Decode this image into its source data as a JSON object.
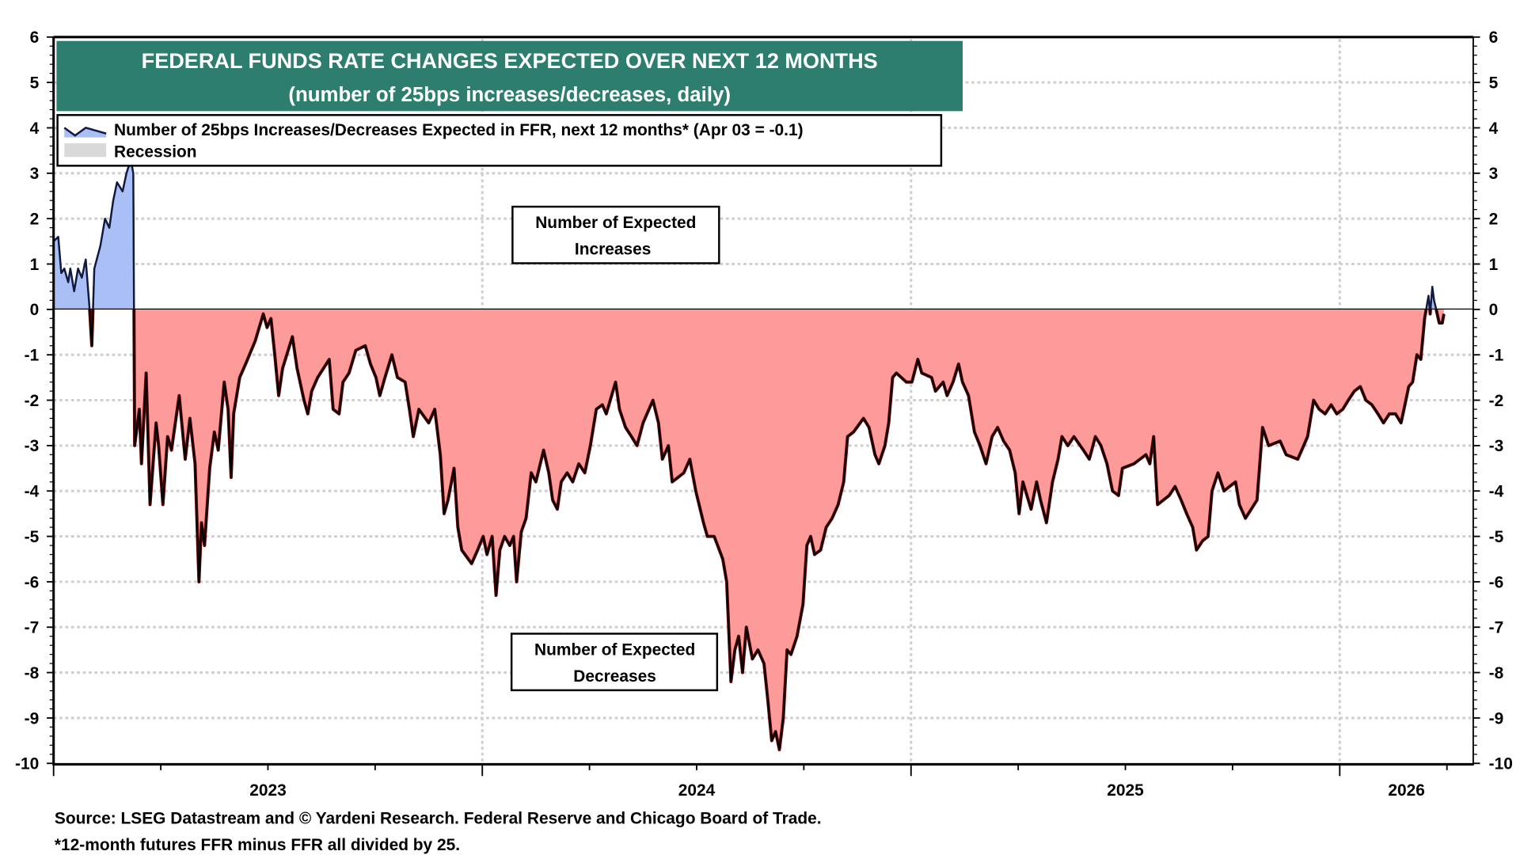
{
  "chart_data": {
    "type": "area",
    "title": "FEDERAL FUNDS RATE CHANGES EXPECTED OVER NEXT 12 MONTHS",
    "subtitle": "(number of 25bps increases/decreases, daily)",
    "legend": [
      {
        "label": "Number of 25bps Increases/Decreases Expected in FFR, next 12 months* (Apr 03 = -0.1)",
        "color_positive": "#a9bff5",
        "color_negative": "#fd9a9a",
        "line_color": "#101a40"
      },
      {
        "label": "Recession",
        "color": "#d9d9d9"
      }
    ],
    "legend_placement": "top-left",
    "annotations": {
      "increases": [
        "Number of Expected",
        "Increases"
      ],
      "decreases": [
        "Number of Expected",
        "Decreases"
      ]
    },
    "ylim": [
      -10,
      6
    ],
    "yticks": [
      6,
      5,
      4,
      3,
      2,
      1,
      0,
      -1,
      -2,
      -3,
      -4,
      -5,
      -6,
      -7,
      -8,
      -9,
      -10
    ],
    "xlim": [
      2023.0,
      2026.33
    ],
    "xtick_labels": [
      "2023",
      "2024",
      "2025",
      "2026"
    ],
    "grid": true,
    "x_unit": "year",
    "series": [
      {
        "points": [
          [
            2023.0,
            1.5
          ],
          [
            2023.011,
            1.6
          ],
          [
            2023.018,
            0.8
          ],
          [
            2023.025,
            0.9
          ],
          [
            2023.034,
            0.6
          ],
          [
            2023.039,
            0.9
          ],
          [
            2023.048,
            0.4
          ],
          [
            2023.057,
            0.9
          ],
          [
            2023.066,
            0.7
          ],
          [
            2023.075,
            1.1
          ],
          [
            2023.084,
            0.0
          ],
          [
            2023.089,
            -0.8
          ],
          [
            2023.095,
            0.9
          ],
          [
            2023.109,
            1.4
          ],
          [
            2023.12,
            2.0
          ],
          [
            2023.13,
            1.8
          ],
          [
            2023.139,
            2.4
          ],
          [
            2023.148,
            2.8
          ],
          [
            2023.161,
            2.6
          ],
          [
            2023.17,
            3.0
          ],
          [
            2023.18,
            3.3
          ],
          [
            2023.186,
            3.0
          ],
          [
            2023.189,
            -3.0
          ],
          [
            2023.2,
            -2.2
          ],
          [
            2023.205,
            -3.4
          ],
          [
            2023.216,
            -1.4
          ],
          [
            2023.225,
            -4.3
          ],
          [
            2023.239,
            -2.5
          ],
          [
            2023.245,
            -3.0
          ],
          [
            2023.255,
            -4.3
          ],
          [
            2023.266,
            -2.8
          ],
          [
            2023.275,
            -3.1
          ],
          [
            2023.293,
            -1.9
          ],
          [
            2023.307,
            -3.3
          ],
          [
            2023.318,
            -2.4
          ],
          [
            2023.33,
            -3.4
          ],
          [
            2023.339,
            -6.0
          ],
          [
            2023.345,
            -4.7
          ],
          [
            2023.352,
            -5.2
          ],
          [
            2023.364,
            -3.5
          ],
          [
            2023.375,
            -2.7
          ],
          [
            2023.384,
            -3.1
          ],
          [
            2023.398,
            -1.6
          ],
          [
            2023.407,
            -2.2
          ],
          [
            2023.414,
            -3.7
          ],
          [
            2023.42,
            -2.3
          ],
          [
            2023.434,
            -1.5
          ],
          [
            2023.448,
            -1.2
          ],
          [
            2023.47,
            -0.7
          ],
          [
            2023.489,
            -0.1
          ],
          [
            2023.498,
            -0.4
          ],
          [
            2023.507,
            -0.2
          ],
          [
            2023.516,
            -1.0
          ],
          [
            2023.525,
            -1.9
          ],
          [
            2023.534,
            -1.3
          ],
          [
            2023.557,
            -0.6
          ],
          [
            2023.568,
            -1.3
          ],
          [
            2023.584,
            -2.0
          ],
          [
            2023.593,
            -2.3
          ],
          [
            2023.602,
            -1.8
          ],
          [
            2023.616,
            -1.5
          ],
          [
            2023.643,
            -1.1
          ],
          [
            2023.652,
            -2.2
          ],
          [
            2023.666,
            -2.3
          ],
          [
            2023.675,
            -1.6
          ],
          [
            2023.689,
            -1.4
          ],
          [
            2023.705,
            -0.9
          ],
          [
            2023.727,
            -0.8
          ],
          [
            2023.739,
            -1.2
          ],
          [
            2023.752,
            -1.5
          ],
          [
            2023.761,
            -1.9
          ],
          [
            2023.773,
            -1.5
          ],
          [
            2023.789,
            -1.0
          ],
          [
            2023.802,
            -1.5
          ],
          [
            2023.82,
            -1.6
          ],
          [
            2023.83,
            -2.2
          ],
          [
            2023.839,
            -2.8
          ],
          [
            2023.852,
            -2.2
          ],
          [
            2023.875,
            -2.5
          ],
          [
            2023.889,
            -2.2
          ],
          [
            2023.902,
            -3.2
          ],
          [
            2023.911,
            -4.5
          ],
          [
            2023.92,
            -4.2
          ],
          [
            2023.934,
            -3.5
          ],
          [
            2023.943,
            -4.8
          ],
          [
            2023.952,
            -5.3
          ],
          [
            2023.975,
            -5.6
          ],
          [
            2023.989,
            -5.3
          ],
          [
            2024.002,
            -5.0
          ],
          [
            2024.011,
            -5.4
          ],
          [
            2024.023,
            -5.0
          ],
          [
            2024.032,
            -6.3
          ],
          [
            2024.041,
            -5.3
          ],
          [
            2024.052,
            -5.0
          ],
          [
            2024.064,
            -5.2
          ],
          [
            2024.073,
            -5.0
          ],
          [
            2024.08,
            -6.0
          ],
          [
            2024.091,
            -4.9
          ],
          [
            2024.102,
            -4.6
          ],
          [
            2024.114,
            -3.6
          ],
          [
            2024.125,
            -3.8
          ],
          [
            2024.143,
            -3.1
          ],
          [
            2024.155,
            -3.6
          ],
          [
            2024.164,
            -4.2
          ],
          [
            2024.175,
            -4.4
          ],
          [
            2024.184,
            -3.8
          ],
          [
            2024.198,
            -3.6
          ],
          [
            2024.211,
            -3.8
          ],
          [
            2024.225,
            -3.4
          ],
          [
            2024.239,
            -3.6
          ],
          [
            2024.252,
            -3.0
          ],
          [
            2024.266,
            -2.2
          ],
          [
            2024.28,
            -2.1
          ],
          [
            2024.289,
            -2.3
          ],
          [
            2024.311,
            -1.6
          ],
          [
            2024.32,
            -2.2
          ],
          [
            2024.334,
            -2.6
          ],
          [
            2024.348,
            -2.8
          ],
          [
            2024.361,
            -3.0
          ],
          [
            2024.375,
            -2.5
          ],
          [
            2024.398,
            -2.0
          ],
          [
            2024.411,
            -2.5
          ],
          [
            2024.42,
            -3.3
          ],
          [
            2024.434,
            -3.0
          ],
          [
            2024.443,
            -3.8
          ],
          [
            2024.47,
            -3.6
          ],
          [
            2024.484,
            -3.3
          ],
          [
            2024.498,
            -4.0
          ],
          [
            2024.516,
            -4.7
          ],
          [
            2024.525,
            -5.0
          ],
          [
            2024.541,
            -5.0
          ],
          [
            2024.561,
            -5.5
          ],
          [
            2024.57,
            -6.0
          ],
          [
            2024.58,
            -8.2
          ],
          [
            2024.589,
            -7.5
          ],
          [
            2024.598,
            -7.2
          ],
          [
            2024.607,
            -8.0
          ],
          [
            2024.616,
            -7.0
          ],
          [
            2024.63,
            -7.7
          ],
          [
            2024.643,
            -7.5
          ],
          [
            2024.657,
            -7.8
          ],
          [
            2024.666,
            -8.6
          ],
          [
            2024.675,
            -9.5
          ],
          [
            2024.684,
            -9.3
          ],
          [
            2024.693,
            -9.7
          ],
          [
            2024.702,
            -9.0
          ],
          [
            2024.711,
            -7.5
          ],
          [
            2024.72,
            -7.6
          ],
          [
            2024.734,
            -7.2
          ],
          [
            2024.748,
            -6.5
          ],
          [
            2024.757,
            -5.2
          ],
          [
            2024.766,
            -5.0
          ],
          [
            2024.775,
            -5.4
          ],
          [
            2024.789,
            -5.3
          ],
          [
            2024.802,
            -4.8
          ],
          [
            2024.816,
            -4.6
          ],
          [
            2024.83,
            -4.3
          ],
          [
            2024.843,
            -3.8
          ],
          [
            2024.852,
            -2.8
          ],
          [
            2024.866,
            -2.7
          ],
          [
            2024.889,
            -2.4
          ],
          [
            2024.902,
            -2.6
          ],
          [
            2024.916,
            -3.2
          ],
          [
            2024.925,
            -3.4
          ],
          [
            2024.939,
            -3.0
          ],
          [
            2024.948,
            -2.5
          ],
          [
            2024.957,
            -1.5
          ],
          [
            2024.966,
            -1.4
          ],
          [
            2024.989,
            -1.6
          ],
          [
            2025.002,
            -1.6
          ],
          [
            2025.016,
            -1.1
          ],
          [
            2025.025,
            -1.4
          ],
          [
            2025.048,
            -1.5
          ],
          [
            2025.057,
            -1.8
          ],
          [
            2025.075,
            -1.6
          ],
          [
            2025.084,
            -1.9
          ],
          [
            2025.098,
            -1.6
          ],
          [
            2025.111,
            -1.2
          ],
          [
            2025.12,
            -1.6
          ],
          [
            2025.134,
            -1.9
          ],
          [
            2025.148,
            -2.7
          ],
          [
            2025.161,
            -3.0
          ],
          [
            2025.175,
            -3.4
          ],
          [
            2025.189,
            -2.8
          ],
          [
            2025.202,
            -2.6
          ],
          [
            2025.216,
            -2.9
          ],
          [
            2025.23,
            -3.1
          ],
          [
            2025.243,
            -3.6
          ],
          [
            2025.252,
            -4.5
          ],
          [
            2025.261,
            -3.8
          ],
          [
            2025.28,
            -4.4
          ],
          [
            2025.293,
            -3.8
          ],
          [
            2025.302,
            -4.2
          ],
          [
            2025.316,
            -4.7
          ],
          [
            2025.33,
            -3.8
          ],
          [
            2025.343,
            -3.3
          ],
          [
            2025.352,
            -2.8
          ],
          [
            2025.366,
            -3.0
          ],
          [
            2025.38,
            -2.8
          ],
          [
            2025.402,
            -3.1
          ],
          [
            2025.416,
            -3.3
          ],
          [
            2025.43,
            -2.8
          ],
          [
            2025.443,
            -3.0
          ],
          [
            2025.457,
            -3.4
          ],
          [
            2025.47,
            -4.0
          ],
          [
            2025.484,
            -4.1
          ],
          [
            2025.493,
            -3.5
          ],
          [
            2025.52,
            -3.4
          ],
          [
            2025.548,
            -3.2
          ],
          [
            2025.557,
            -3.4
          ],
          [
            2025.566,
            -2.8
          ],
          [
            2025.575,
            -4.3
          ],
          [
            2025.602,
            -4.1
          ],
          [
            2025.616,
            -3.9
          ],
          [
            2025.63,
            -4.2
          ],
          [
            2025.643,
            -4.5
          ],
          [
            2025.657,
            -4.8
          ],
          [
            2025.666,
            -5.3
          ],
          [
            2025.68,
            -5.1
          ],
          [
            2025.693,
            -5.0
          ],
          [
            2025.702,
            -4.0
          ],
          [
            2025.716,
            -3.6
          ],
          [
            2025.73,
            -4.0
          ],
          [
            2025.743,
            -3.9
          ],
          [
            2025.757,
            -3.8
          ],
          [
            2025.766,
            -4.3
          ],
          [
            2025.78,
            -4.6
          ],
          [
            2025.807,
            -4.2
          ],
          [
            2025.82,
            -2.6
          ],
          [
            2025.834,
            -3.0
          ],
          [
            2025.861,
            -2.9
          ],
          [
            2025.875,
            -3.2
          ],
          [
            2025.902,
            -3.3
          ],
          [
            2025.916,
            -3.0
          ],
          [
            2025.925,
            -2.8
          ],
          [
            2025.939,
            -2.0
          ],
          [
            2025.952,
            -2.2
          ],
          [
            2025.966,
            -2.3
          ],
          [
            2025.98,
            -2.1
          ],
          [
            2025.993,
            -2.3
          ],
          [
            2026.007,
            -2.2
          ],
          [
            2026.02,
            -2.0
          ],
          [
            2026.034,
            -1.8
          ],
          [
            2026.048,
            -1.7
          ],
          [
            2026.061,
            -2.0
          ],
          [
            2026.075,
            -2.1
          ],
          [
            2026.089,
            -2.3
          ],
          [
            2026.102,
            -2.5
          ],
          [
            2026.116,
            -2.3
          ],
          [
            2026.13,
            -2.3
          ],
          [
            2026.143,
            -2.5
          ],
          [
            2026.152,
            -2.1
          ],
          [
            2026.161,
            -1.7
          ],
          [
            2026.17,
            -1.6
          ],
          [
            2026.18,
            -1.0
          ],
          [
            2026.189,
            -1.1
          ],
          [
            2026.198,
            -0.2
          ],
          [
            2026.207,
            0.3
          ],
          [
            2026.211,
            -0.1
          ],
          [
            2026.216,
            0.5
          ],
          [
            2026.22,
            0.2
          ],
          [
            2026.225,
            0.0
          ],
          [
            2026.232,
            -0.3
          ],
          [
            2026.239,
            -0.3
          ],
          [
            2026.243,
            -0.1
          ]
        ]
      }
    ]
  },
  "footer": {
    "source": "Source: LSEG Datastream and © Yardeni Research. Federal Reserve and Chicago Board of Trade.",
    "note": "*12-month futures FFR minus FFR all divided by 25."
  }
}
